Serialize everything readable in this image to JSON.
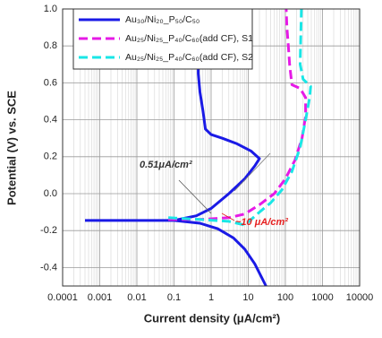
{
  "chart_data": {
    "type": "line",
    "x_label": "Current density (μA/cm²)",
    "y_label": "Potential (V) vs. SCE",
    "xscale": "log",
    "xlim": [
      0.0001,
      10000
    ],
    "ylim": [
      -0.5,
      1.0
    ],
    "xticks": [
      0.0001,
      0.001,
      0.01,
      0.1,
      1,
      10,
      100,
      1000,
      10000
    ],
    "yticks": [
      -0.4,
      -0.2,
      {
        "value": 0,
        "label": "0.0"
      },
      0.2,
      0.4,
      0.6,
      0.8,
      {
        "value": 1,
        "label": "1.0"
      }
    ],
    "grid": true,
    "legend": "upper left",
    "series": [
      {
        "name": "Au₃₀/Ni₂₀_P₅₀/C₅₀",
        "color": "#1a1ae6",
        "style": "solid",
        "x": [
          0.0004,
          0.01,
          0.1,
          0.5,
          1.5,
          4,
          8,
          15,
          30,
          null,
          0.1,
          0.4,
          1,
          3,
          8,
          15,
          20,
          12,
          5,
          2,
          1,
          0.7,
          0.6,
          0.5,
          0.45,
          0.45,
          0.5,
          0.45
        ],
        "values": [
          -0.145,
          -0.145,
          -0.145,
          -0.16,
          -0.19,
          -0.24,
          -0.3,
          -0.38,
          -0.5,
          null,
          -0.145,
          -0.12,
          -0.08,
          0.0,
          0.08,
          0.15,
          0.19,
          0.23,
          0.27,
          0.3,
          0.32,
          0.35,
          0.45,
          0.55,
          0.65,
          0.75,
          0.9,
          1.0
        ]
      },
      {
        "name": "Au₂₅/Ni₂₅_P₄₀/C₆₀(add CF), S1",
        "color": "#e61ae6",
        "style": "dashed",
        "x": [
          0.07,
          0.5,
          3,
          8,
          20,
          50,
          100,
          180,
          280,
          350,
          350,
          250,
          150,
          130,
          120,
          110,
          105
        ],
        "values": [
          -0.14,
          -0.14,
          -0.13,
          -0.11,
          -0.06,
          0.0,
          0.08,
          0.18,
          0.3,
          0.42,
          0.52,
          0.57,
          0.59,
          0.7,
          0.8,
          0.9,
          1.0
        ]
      },
      {
        "name": "Au₂₅/Ni₂₅_P₄₀/C₆₀(add CF), S2",
        "color": "#1ae6e6",
        "style": "dashed",
        "x": [
          0.07,
          0.5,
          3,
          8,
          12,
          20,
          40,
          80,
          150,
          250,
          350,
          450,
          480,
          300,
          250,
          260,
          270
        ],
        "values": [
          -0.13,
          -0.14,
          -0.15,
          -0.17,
          -0.14,
          -0.1,
          -0.05,
          0.02,
          0.12,
          0.25,
          0.4,
          0.52,
          0.58,
          0.62,
          0.7,
          0.85,
          1.0
        ]
      }
    ],
    "annotations": [
      {
        "text": "0.51μA/cm²",
        "color": "#333333"
      },
      {
        "text": "~10 μA/cm²",
        "color": "#e62020"
      }
    ]
  }
}
